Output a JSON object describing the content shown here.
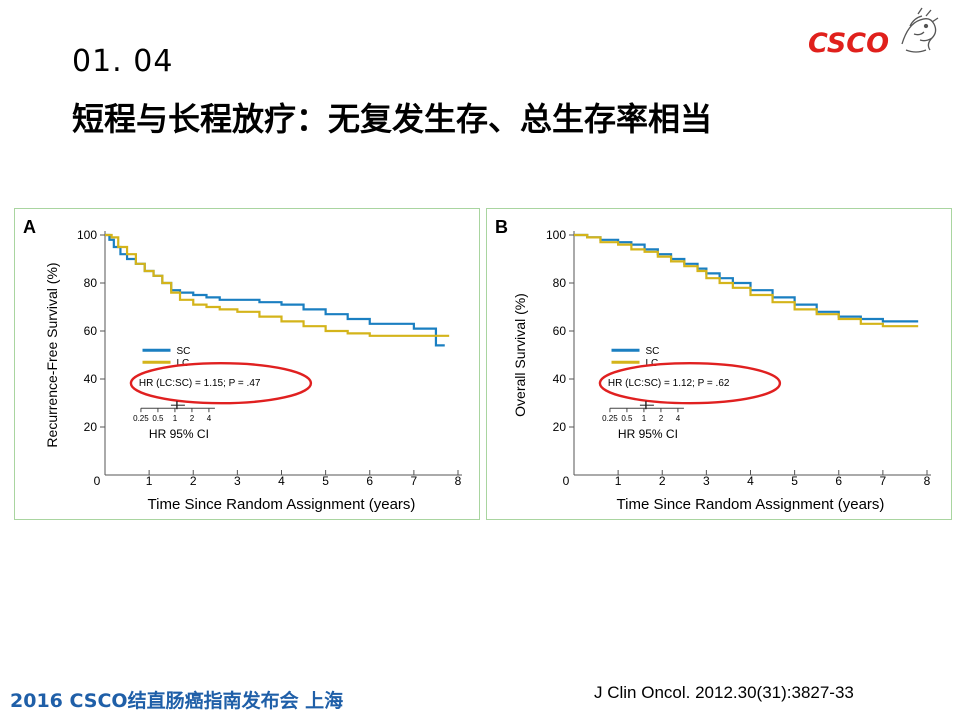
{
  "slide": {
    "number": "01. 04",
    "title": "短程与长程放疗：无复发生存、总生存率相当",
    "logo_text": "CSCO",
    "footer_left": "2016 CSCO结直肠癌指南发布会  上海",
    "footer_right": "J Clin Oncol. 2012.30(31):3827-33"
  },
  "colors": {
    "sc": "#1a7fc1",
    "lc": "#d4b41a",
    "ellipse": "#e02020",
    "logo": "#e0201c"
  },
  "chart_data": [
    {
      "type": "line",
      "panel_label": "A",
      "ylabel": "Recurrence-Free Survival (%)",
      "xlabel": "Time Since Random Assignment (years)",
      "xlim": [
        0,
        8
      ],
      "ylim": [
        0,
        100
      ],
      "x_ticks": [
        "0",
        "1",
        "2",
        "3",
        "4",
        "5",
        "6",
        "7",
        "8"
      ],
      "y_ticks": [
        "20",
        "40",
        "60",
        "80",
        "100"
      ],
      "legend": [
        "SC",
        "LC"
      ],
      "annotation": "HR (LC:SC) = 1.15; P = .47",
      "forest_ticks": [
        "0.25",
        "0.5",
        "1",
        "2",
        "4"
      ],
      "forest_label": "HR 95% CI",
      "series": [
        {
          "name": "SC",
          "x": [
            0,
            0.1,
            0.2,
            0.35,
            0.5,
            0.7,
            0.9,
            1.1,
            1.3,
            1.5,
            1.7,
            2.0,
            2.3,
            2.6,
            3.0,
            3.5,
            4.0,
            4.5,
            5.0,
            5.5,
            6.0,
            7.0,
            7.45,
            7.5,
            7.7
          ],
          "y": [
            100,
            98,
            95,
            92,
            90,
            88,
            85,
            83,
            80,
            77,
            76,
            75,
            74,
            73,
            73,
            72,
            71,
            69,
            67,
            65,
            63,
            61,
            61,
            54,
            54
          ]
        },
        {
          "name": "LC",
          "x": [
            0,
            0.15,
            0.3,
            0.5,
            0.7,
            0.9,
            1.1,
            1.3,
            1.5,
            1.7,
            2.0,
            2.3,
            2.6,
            3.0,
            3.5,
            4.0,
            4.5,
            5.0,
            5.5,
            6.0,
            7.0,
            7.8
          ],
          "y": [
            100,
            99,
            95,
            92,
            88,
            85,
            83,
            80,
            76,
            73,
            71,
            70,
            69,
            68,
            66,
            64,
            62,
            60,
            59,
            58,
            58,
            58
          ]
        }
      ]
    },
    {
      "type": "line",
      "panel_label": "B",
      "ylabel": "Overall Survival (%)",
      "xlabel": "Time Since Random Assignment (years)",
      "xlim": [
        0,
        8
      ],
      "ylim": [
        0,
        100
      ],
      "x_ticks": [
        "0",
        "1",
        "2",
        "3",
        "4",
        "5",
        "6",
        "7",
        "8"
      ],
      "y_ticks": [
        "20",
        "40",
        "60",
        "80",
        "100"
      ],
      "legend": [
        "SC",
        "LC"
      ],
      "annotation": "HR (LC:SC) = 1.12; P = .62",
      "forest_ticks": [
        "0.25",
        "0.5",
        "1",
        "2",
        "4"
      ],
      "forest_label": "HR 95% CI",
      "series": [
        {
          "name": "SC",
          "x": [
            0,
            0.3,
            0.6,
            1.0,
            1.3,
            1.6,
            1.9,
            2.2,
            2.5,
            2.8,
            3.0,
            3.3,
            3.6,
            4.0,
            4.5,
            5.0,
            5.5,
            6.0,
            6.5,
            7.0,
            7.8
          ],
          "y": [
            100,
            99,
            98,
            97,
            96,
            94,
            92,
            90,
            88,
            86,
            84,
            82,
            80,
            77,
            74,
            71,
            68,
            66,
            65,
            64,
            64
          ]
        },
        {
          "name": "LC",
          "x": [
            0,
            0.3,
            0.6,
            1.0,
            1.3,
            1.6,
            1.9,
            2.2,
            2.5,
            2.8,
            3.0,
            3.3,
            3.6,
            4.0,
            4.5,
            5.0,
            5.5,
            6.0,
            6.5,
            7.0,
            7.8
          ],
          "y": [
            100,
            99,
            97,
            96,
            94,
            93,
            91,
            89,
            87,
            85,
            82,
            80,
            78,
            75,
            72,
            69,
            67,
            65,
            63,
            62,
            62
          ]
        }
      ]
    }
  ]
}
